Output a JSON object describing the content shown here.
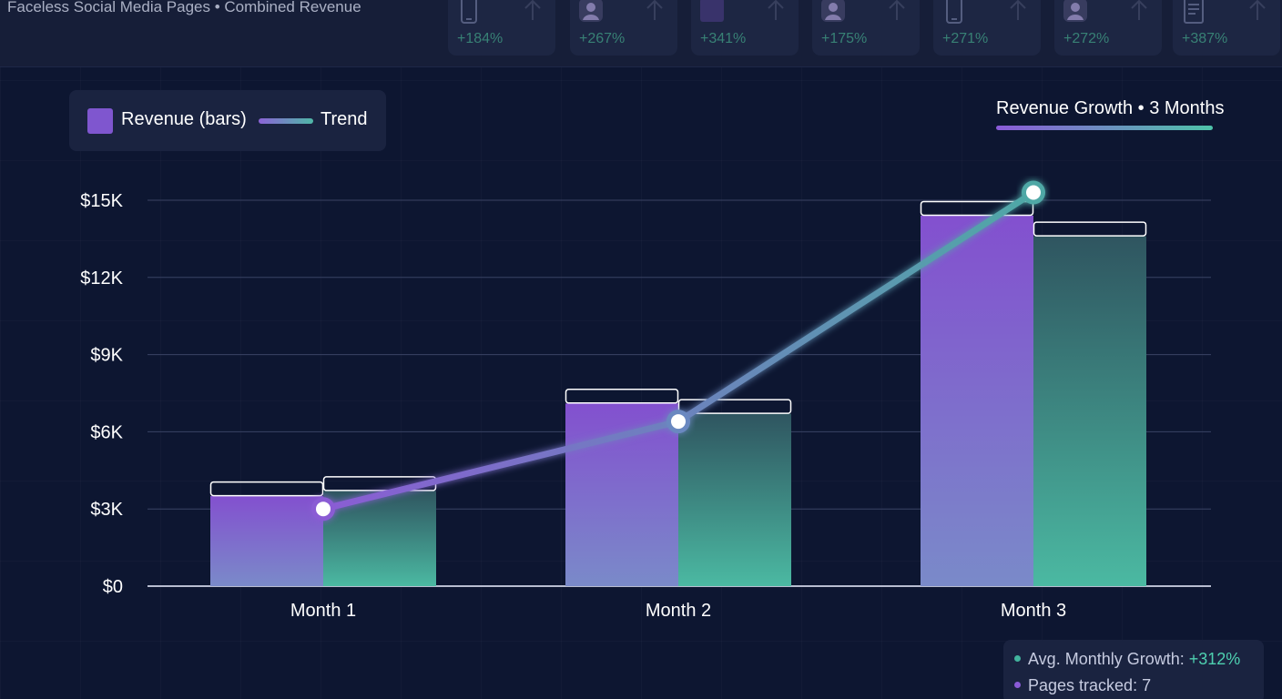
{
  "header": {
    "title": "Faceless Social Media Pages • Combined Revenue",
    "tiles": [
      {
        "icon": "phone-icon",
        "pct": "+184%"
      },
      {
        "icon": "avatar-icon",
        "pct": "+267%"
      },
      {
        "icon": "square-icon",
        "pct": "+341%"
      },
      {
        "icon": "avatar-icon",
        "pct": "+175%"
      },
      {
        "icon": "phone-icon",
        "pct": "+271%"
      },
      {
        "icon": "avatar-icon",
        "pct": "+272%"
      },
      {
        "icon": "document-icon",
        "pct": "+387%"
      }
    ]
  },
  "legend": {
    "bars_label": "Revenue (bars)",
    "trend_label": "Trend"
  },
  "growth_title": "Revenue Growth • 3 Months",
  "stats": {
    "avg_label": "Avg. Monthly Growth: ",
    "avg_value": "+312%",
    "pages_label": "Pages tracked: 7"
  },
  "colors": {
    "purple": "#8a5ad6",
    "teal": "#46b5a2",
    "background": "#0d1631"
  },
  "chart_data": {
    "type": "bar",
    "categories": [
      "Month 1",
      "Month 2",
      "Month 3"
    ],
    "series": [
      {
        "values": [
          3500,
          7100,
          14400
        ]
      },
      {
        "values": [
          3700,
          6700,
          13600
        ]
      }
    ],
    "trend": [
      3000,
      6400,
      15300
    ],
    "y_ticks": [
      "$0",
      "$3K",
      "$6K",
      "$9K",
      "$12K",
      "$15K"
    ],
    "ylim": [
      0,
      15000
    ],
    "grid": true
  }
}
